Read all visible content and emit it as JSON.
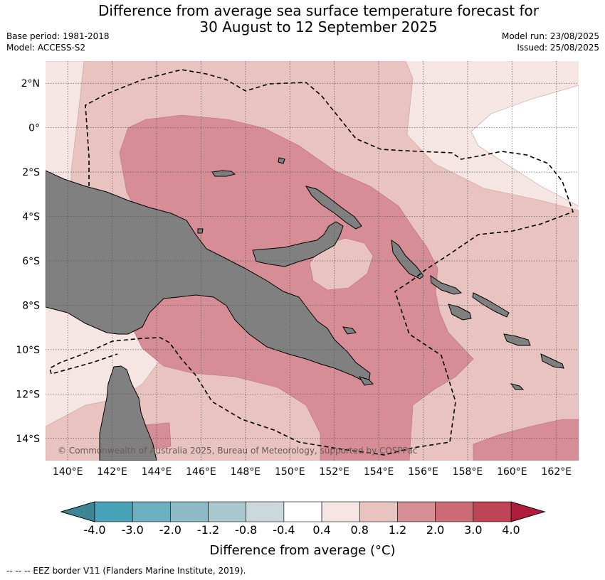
{
  "title": {
    "line1": "Difference from average sea surface temperature forecast for",
    "line2": "30 August to 12 September 2025"
  },
  "meta": {
    "base_period": "Base period: 1981-2018",
    "model": "Model: ACCESS-S2",
    "model_run": "Model run: 23/08/2025",
    "issued": "Issued: 25/08/2025"
  },
  "map": {
    "lat_labels": [
      "2°N",
      "0°",
      "2°S",
      "4°S",
      "6°S",
      "8°S",
      "10°S",
      "12°S",
      "14°S"
    ],
    "lon_labels": [
      "140°E",
      "142°E",
      "144°E",
      "146°E",
      "148°E",
      "150°E",
      "152°E",
      "154°E",
      "156°E",
      "158°E",
      "160°E",
      "162°E"
    ],
    "lat_values": [
      2,
      0,
      -2,
      -4,
      -6,
      -8,
      -10,
      -12,
      -14
    ],
    "lon_values": [
      140,
      142,
      144,
      146,
      148,
      150,
      152,
      154,
      156,
      158,
      160,
      162
    ],
    "lon_range": [
      139,
      163
    ],
    "lat_range": [
      -15,
      3
    ],
    "land_color": "#808080",
    "copyright": "© Commonwealth of Australia 2025, Bureau of Meteorology, supported by COSPPac"
  },
  "colorbar": {
    "title": "Difference from average (°C)",
    "labels": [
      "-4.0",
      "-3.0",
      "-2.0",
      "-1.2",
      "-0.8",
      "-0.4",
      "0.4",
      "0.8",
      "1.2",
      "2.0",
      "3.0",
      "4.0"
    ],
    "low_extend_color": "#3d8593",
    "high_extend_color": "#b01c3c",
    "colors": [
      "#47a2b5",
      "#6db0c0",
      "#8cbac6",
      "#a8c8cd",
      "#cbd9dc",
      "#ffffff",
      "#f5e6e4",
      "#e8c3c0",
      "#d68d96",
      "#cb6b76",
      "#bf4455"
    ]
  },
  "footnote": "-- -- -- EEZ border V11 (Flanders Marine Institute, 2019)."
}
